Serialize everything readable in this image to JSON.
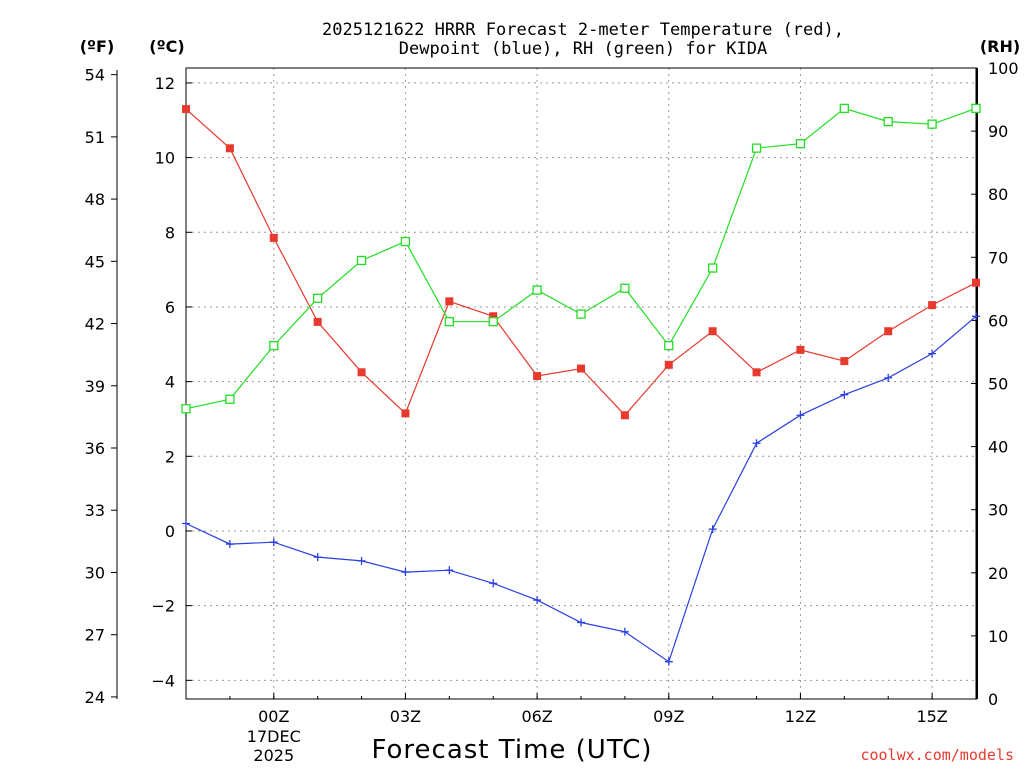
{
  "chart_data": {
    "type": "line",
    "title_line1": "2025121622 HRRR Forecast 2-meter Temperature (red),",
    "title_line2": "Dewpoint (blue), RH (green) for KIDA",
    "xlabel": "Forecast Time (UTC)",
    "units": {
      "left_outer": "(ºF)",
      "left_inner": "(ºC)",
      "right": "(RH)"
    },
    "credit": "coolwx.com/models",
    "x": [
      -2,
      -1,
      0,
      1,
      2,
      3,
      4,
      5,
      6,
      7,
      8,
      9,
      10,
      11,
      12,
      13,
      14,
      15,
      16
    ],
    "x_ticks": [
      {
        "x": 0,
        "label": "00Z",
        "date": "17DEC",
        "year": "2025"
      },
      {
        "x": 3,
        "label": "03Z"
      },
      {
        "x": 6,
        "label": "06Z"
      },
      {
        "x": 9,
        "label": "09Z"
      },
      {
        "x": 12,
        "label": "12Z"
      },
      {
        "x": 15,
        "label": "15Z"
      }
    ],
    "xlim": [
      -2,
      16
    ],
    "ylim_c": [
      -4.5,
      12.4
    ],
    "celsius_ticks": [
      -4,
      -2,
      0,
      2,
      4,
      6,
      8,
      10,
      12
    ],
    "fahrenheit_ticks": [
      24,
      27,
      30,
      33,
      36,
      39,
      42,
      45,
      48,
      51,
      54
    ],
    "rh_ticks": [
      0,
      10,
      20,
      30,
      40,
      50,
      60,
      70,
      80,
      90,
      100
    ],
    "series": [
      {
        "name": "Temperature",
        "color": "#e8392e",
        "marker": "filled-square",
        "values": [
          11.3,
          10.25,
          7.85,
          5.6,
          4.25,
          3.15,
          6.15,
          5.75,
          4.15,
          4.35,
          3.1,
          4.45,
          5.35,
          4.25,
          4.85,
          4.55,
          5.35,
          6.05,
          6.65
        ]
      },
      {
        "name": "Dewpoint",
        "color": "#2a3fe0",
        "marker": "plus",
        "values": [
          0.2,
          -0.35,
          -0.3,
          -0.7,
          -0.8,
          -1.1,
          -1.05,
          -1.4,
          -1.85,
          -2.45,
          -2.7,
          -3.5,
          0.05,
          2.35,
          3.1,
          3.65,
          4.1,
          4.75,
          5.75
        ]
      },
      {
        "name": "RH",
        "color": "#22dd22",
        "marker": "open-square",
        "values": [
          46,
          47.5,
          56,
          63.5,
          69.5,
          72.5,
          59.8,
          59.8,
          64.8,
          61,
          65.1,
          56,
          68.3,
          87.3,
          88,
          93.6,
          91.5,
          91.1,
          93.6
        ]
      }
    ]
  }
}
